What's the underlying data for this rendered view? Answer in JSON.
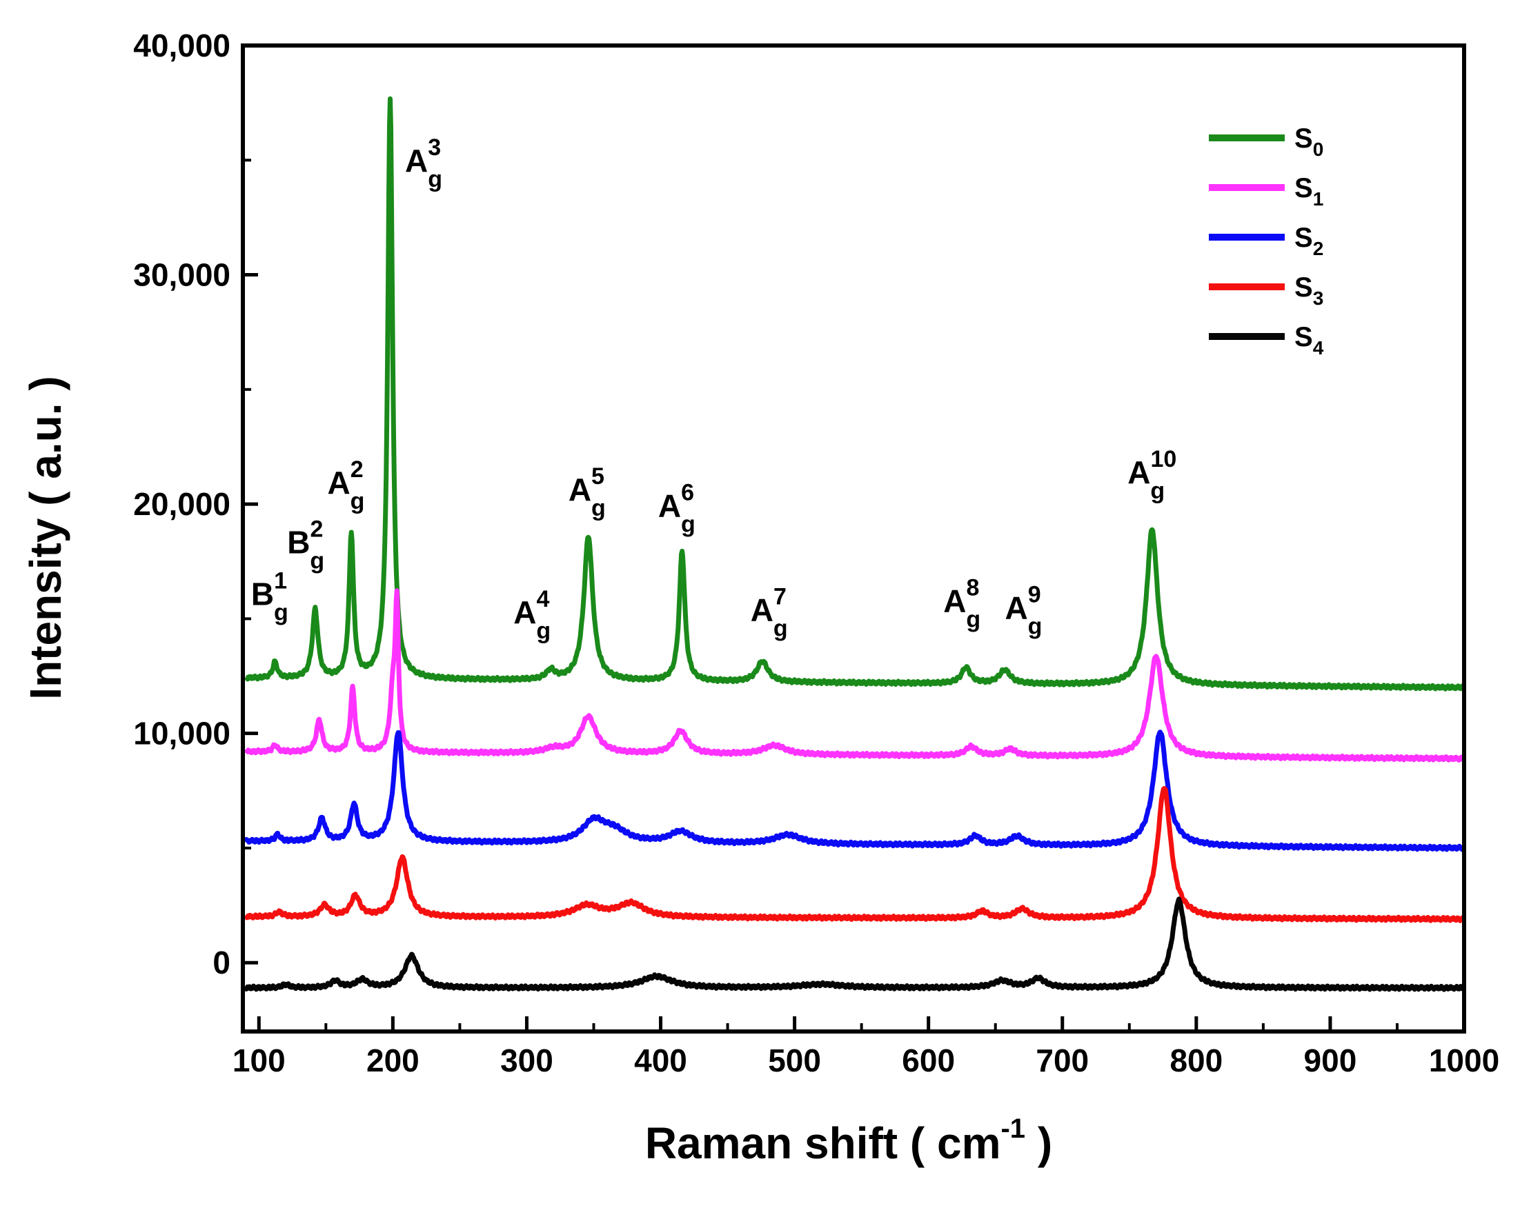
{
  "chart_data": {
    "type": "line",
    "title": "",
    "xlabel": "Raman shift ( cm",
    "xlabel_sup": "-1",
    "xlabel_end": " )",
    "ylabel": "Intensity ( a.u. )",
    "xlim": [
      88,
      1000
    ],
    "ylim": [
      -3000,
      40000
    ],
    "x_ticks": [
      100,
      200,
      300,
      400,
      500,
      600,
      700,
      800,
      900,
      1000
    ],
    "x_tick_labels": [
      "100",
      "200",
      "300",
      "400",
      "500",
      "600",
      "700",
      "800",
      "900",
      "1000"
    ],
    "y_ticks": [
      0,
      10000,
      20000,
      30000,
      40000
    ],
    "y_tick_labels": [
      "0",
      "10,000",
      "20,000",
      "30,000",
      "40,000"
    ],
    "legend_position": "top-right",
    "series": [
      {
        "name": "S0",
        "label_main": "S",
        "label_sub": "0",
        "color": "#1a8a1a",
        "baseline": [
          [
            90,
            12400
          ],
          [
            1000,
            12000
          ]
        ],
        "peaks": [
          [
            112,
            700,
            2
          ],
          [
            142,
            3000,
            2.5
          ],
          [
            169,
            6300,
            2
          ],
          [
            198,
            25300,
            2.2
          ],
          [
            318,
            400,
            4
          ],
          [
            346,
            6300,
            4
          ],
          [
            416,
            5700,
            2.5
          ],
          [
            476,
            900,
            5
          ],
          [
            628,
            700,
            4
          ],
          [
            657,
            600,
            5
          ],
          [
            767,
            6800,
            5
          ]
        ]
      },
      {
        "name": "S1",
        "label_main": "S",
        "label_sub": "1",
        "color": "#ff33ff",
        "baseline": [
          [
            90,
            9200
          ],
          [
            1000,
            8900
          ]
        ],
        "peaks": [
          [
            112,
            300,
            2
          ],
          [
            145,
            1400,
            2.5
          ],
          [
            170,
            2800,
            2
          ],
          [
            200,
            2400,
            2.5
          ],
          [
            203,
            6000,
            1.5
          ],
          [
            320,
            200,
            8
          ],
          [
            346,
            1600,
            7
          ],
          [
            415,
            1000,
            6
          ],
          [
            485,
            400,
            10
          ],
          [
            632,
            400,
            5
          ],
          [
            661,
            300,
            5
          ],
          [
            770,
            4400,
            6
          ]
        ]
      },
      {
        "name": "S2",
        "label_main": "S",
        "label_sub": "2",
        "color": "#0b0bf5",
        "baseline": [
          [
            90,
            5300
          ],
          [
            1000,
            5000
          ]
        ],
        "peaks": [
          [
            114,
            300,
            2
          ],
          [
            147,
            1000,
            3
          ],
          [
            171,
            1600,
            3
          ],
          [
            204,
            4800,
            4
          ],
          [
            350,
            900,
            10
          ],
          [
            365,
            500,
            12
          ],
          [
            415,
            500,
            10
          ],
          [
            495,
            400,
            12
          ],
          [
            635,
            400,
            5
          ],
          [
            666,
            400,
            6
          ],
          [
            773,
            5000,
            6
          ]
        ]
      },
      {
        "name": "S3",
        "label_main": "S",
        "label_sub": "3",
        "color": "#f51010",
        "baseline": [
          [
            90,
            2000
          ],
          [
            1000,
            1900
          ]
        ],
        "peaks": [
          [
            115,
            200,
            3
          ],
          [
            149,
            500,
            4
          ],
          [
            172,
            900,
            4
          ],
          [
            207,
            2600,
            5
          ],
          [
            345,
            500,
            12
          ],
          [
            378,
            600,
            12
          ],
          [
            640,
            300,
            5
          ],
          [
            670,
            400,
            6
          ],
          [
            776,
            5700,
            6
          ]
        ]
      },
      {
        "name": "S4",
        "label_main": "S",
        "label_sub": "4",
        "color": "#050505",
        "baseline": [
          [
            90,
            -1100
          ],
          [
            1000,
            -1100
          ]
        ],
        "peaks": [
          [
            120,
            150,
            3
          ],
          [
            157,
            300,
            4
          ],
          [
            177,
            350,
            5
          ],
          [
            214,
            1400,
            6
          ],
          [
            397,
            500,
            14
          ],
          [
            520,
            150,
            20
          ],
          [
            655,
            300,
            8
          ],
          [
            682,
            400,
            6
          ],
          [
            787,
            3800,
            6
          ]
        ]
      }
    ],
    "annotations": [
      {
        "main": "B",
        "sup": "1",
        "sub": "g",
        "x": 108,
        "y": 15600
      },
      {
        "main": "B",
        "sup": "2",
        "sub": "g",
        "x": 135,
        "y": 17850
      },
      {
        "main": "A",
        "sup": "2",
        "sub": "g",
        "x": 165,
        "y": 20450
      },
      {
        "main": "A",
        "sup": "3",
        "sub": "g",
        "x": 223,
        "y": 34500
      },
      {
        "main": "A",
        "sup": "4",
        "sub": "g",
        "x": 304,
        "y": 14800
      },
      {
        "main": "A",
        "sup": "5",
        "sub": "g",
        "x": 345,
        "y": 20150
      },
      {
        "main": "A",
        "sup": "6",
        "sub": "g",
        "x": 412,
        "y": 19450
      },
      {
        "main": "A",
        "sup": "7",
        "sub": "g",
        "x": 481,
        "y": 14900
      },
      {
        "main": "A",
        "sup": "8",
        "sub": "g",
        "x": 625,
        "y": 15300
      },
      {
        "main": "A",
        "sup": "9",
        "sub": "g",
        "x": 671,
        "y": 15000
      },
      {
        "main": "A",
        "sup": "10",
        "sub": "g",
        "x": 767,
        "y": 20900
      }
    ]
  }
}
